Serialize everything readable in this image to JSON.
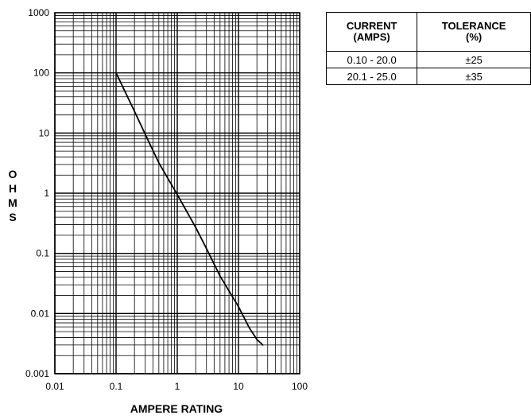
{
  "chart_data": {
    "type": "line",
    "title": "",
    "xlabel": "AMPERE RATING",
    "ylabel": "OHMS",
    "x_scale": "log",
    "y_scale": "log",
    "xlim": [
      0.01,
      100
    ],
    "ylim": [
      0.001,
      1000
    ],
    "grid": true,
    "x_ticks": [
      "0.01",
      "0.1",
      "1",
      "10",
      "100"
    ],
    "y_ticks": [
      "0.001",
      "0.01",
      "0.1",
      "1",
      "10",
      "100",
      "1000"
    ],
    "series": [
      {
        "color": "#000000",
        "x": [
          0.1,
          0.2,
          0.3,
          0.5,
          1,
          2,
          3,
          5,
          10,
          15,
          20,
          25
        ],
        "y": [
          100,
          23,
          9.5,
          3.2,
          0.95,
          0.27,
          0.12,
          0.042,
          0.013,
          0.0058,
          0.0037,
          0.003
        ]
      }
    ]
  },
  "table": {
    "headers": [
      [
        "CURRENT",
        "(AMPS)"
      ],
      [
        "TOLERANCE",
        "(%)"
      ]
    ],
    "rows": [
      [
        "0.10 - 20.0",
        "±25"
      ],
      [
        "20.1 - 25.0",
        "±35"
      ]
    ]
  }
}
